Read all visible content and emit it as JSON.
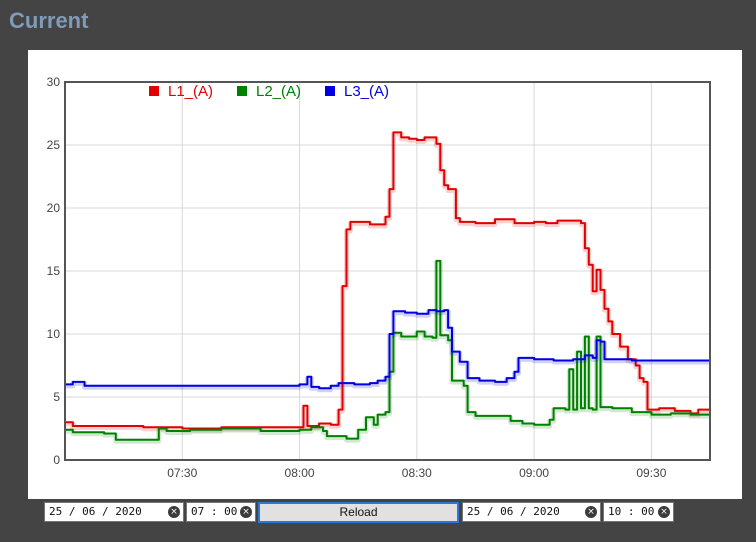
{
  "page": {
    "title": "Current"
  },
  "controls": {
    "start_date": "25 / 06 / 2020",
    "start_time": "07 : 00",
    "reload_label": "Reload",
    "end_date": "25 / 06 / 2020",
    "end_time": "10 : 00",
    "clear_glyph": "×"
  },
  "chart_data": {
    "type": "line",
    "title": "",
    "xlabel": "",
    "ylabel": "",
    "x_range": [
      "07:00",
      "09:45"
    ],
    "x_ticks": [
      "07:30",
      "08:00",
      "08:30",
      "09:00",
      "09:30"
    ],
    "y_range": [
      0,
      30
    ],
    "y_ticks": [
      0,
      5,
      10,
      15,
      20,
      25,
      30
    ],
    "grid": true,
    "legend_position": "top-left",
    "series": [
      {
        "name": "L1_(A)",
        "color": "#e00000",
        "points": [
          [
            "07:00",
            3.0
          ],
          [
            "07:02",
            2.7
          ],
          [
            "07:20",
            2.6
          ],
          [
            "07:30",
            2.5
          ],
          [
            "07:40",
            2.6
          ],
          [
            "07:50",
            2.6
          ],
          [
            "08:00",
            2.6
          ],
          [
            "08:01",
            4.3
          ],
          [
            "08:02",
            2.7
          ],
          [
            "08:05",
            2.9
          ],
          [
            "08:08",
            2.8
          ],
          [
            "08:10",
            4.0
          ],
          [
            "08:11",
            13.8
          ],
          [
            "08:12",
            18.3
          ],
          [
            "08:13",
            18.9
          ],
          [
            "08:18",
            18.7
          ],
          [
            "08:22",
            19.3
          ],
          [
            "08:23",
            21.5
          ],
          [
            "08:24",
            26.0
          ],
          [
            "08:26",
            25.6
          ],
          [
            "08:28",
            25.5
          ],
          [
            "08:30",
            25.4
          ],
          [
            "08:32",
            25.6
          ],
          [
            "08:34",
            25.6
          ],
          [
            "08:35",
            25.1
          ],
          [
            "08:36",
            23.0
          ],
          [
            "08:37",
            21.8
          ],
          [
            "08:38",
            21.5
          ],
          [
            "08:40",
            19.2
          ],
          [
            "08:41",
            18.9
          ],
          [
            "08:45",
            18.8
          ],
          [
            "08:50",
            19.1
          ],
          [
            "08:55",
            18.8
          ],
          [
            "09:00",
            18.9
          ],
          [
            "09:03",
            18.8
          ],
          [
            "09:06",
            19.0
          ],
          [
            "09:09",
            19.0
          ],
          [
            "09:12",
            18.8
          ],
          [
            "09:13",
            16.8
          ],
          [
            "09:14",
            15.5
          ],
          [
            "09:15",
            13.4
          ],
          [
            "09:16",
            15.1
          ],
          [
            "09:17",
            13.5
          ],
          [
            "09:18",
            12.0
          ],
          [
            "09:19",
            11.0
          ],
          [
            "09:20",
            10.0
          ],
          [
            "09:22",
            9.0
          ],
          [
            "09:24",
            8.0
          ],
          [
            "09:26",
            7.5
          ],
          [
            "09:27",
            6.5
          ],
          [
            "09:28",
            6.2
          ],
          [
            "09:29",
            4.0
          ],
          [
            "09:32",
            4.1
          ],
          [
            "09:36",
            3.9
          ],
          [
            "09:40",
            3.7
          ],
          [
            "09:42",
            4.0
          ],
          [
            "09:45",
            4.0
          ]
        ]
      },
      {
        "name": "L2_(A)",
        "color": "#008000",
        "points": [
          [
            "07:00",
            2.4
          ],
          [
            "07:02",
            2.2
          ],
          [
            "07:10",
            2.1
          ],
          [
            "07:13",
            1.6
          ],
          [
            "07:20",
            1.6
          ],
          [
            "07:24",
            2.5
          ],
          [
            "07:26",
            2.3
          ],
          [
            "07:32",
            2.4
          ],
          [
            "07:40",
            2.5
          ],
          [
            "07:50",
            2.3
          ],
          [
            "08:00",
            2.4
          ],
          [
            "08:03",
            2.6
          ],
          [
            "08:06",
            2.3
          ],
          [
            "08:07",
            1.9
          ],
          [
            "08:12",
            1.7
          ],
          [
            "08:15",
            2.4
          ],
          [
            "08:17",
            3.4
          ],
          [
            "08:19",
            2.8
          ],
          [
            "08:20",
            3.6
          ],
          [
            "08:22",
            3.8
          ],
          [
            "08:23",
            7.0
          ],
          [
            "08:24",
            10.1
          ],
          [
            "08:26",
            9.8
          ],
          [
            "08:28",
            9.8
          ],
          [
            "08:30",
            10.2
          ],
          [
            "08:32",
            9.8
          ],
          [
            "08:34",
            9.7
          ],
          [
            "08:35",
            15.8
          ],
          [
            "08:36",
            9.9
          ],
          [
            "08:38",
            9.5
          ],
          [
            "08:39",
            6.3
          ],
          [
            "08:42",
            5.9
          ],
          [
            "08:43",
            3.8
          ],
          [
            "08:45",
            3.5
          ],
          [
            "08:50",
            3.5
          ],
          [
            "08:54",
            3.1
          ],
          [
            "08:57",
            2.9
          ],
          [
            "09:00",
            2.8
          ],
          [
            "09:04",
            3.2
          ],
          [
            "09:05",
            4.1
          ],
          [
            "09:08",
            4.0
          ],
          [
            "09:09",
            7.2
          ],
          [
            "09:10",
            4.0
          ],
          [
            "09:11",
            8.6
          ],
          [
            "09:12",
            4.1
          ],
          [
            "09:13",
            9.8
          ],
          [
            "09:14",
            4.1
          ],
          [
            "09:15",
            4.0
          ],
          [
            "09:16",
            9.8
          ],
          [
            "09:17",
            4.2
          ],
          [
            "09:20",
            4.1
          ],
          [
            "09:25",
            3.8
          ],
          [
            "09:30",
            3.6
          ],
          [
            "09:35",
            3.7
          ],
          [
            "09:40",
            3.6
          ],
          [
            "09:45",
            3.6
          ]
        ]
      },
      {
        "name": "L3_(A)",
        "color": "#0000e0",
        "points": [
          [
            "07:00",
            6.0
          ],
          [
            "07:02",
            6.2
          ],
          [
            "07:05",
            5.9
          ],
          [
            "07:20",
            5.9
          ],
          [
            "07:40",
            5.9
          ],
          [
            "07:55",
            5.9
          ],
          [
            "08:00",
            6.0
          ],
          [
            "08:02",
            6.6
          ],
          [
            "08:03",
            5.8
          ],
          [
            "08:05",
            5.7
          ],
          [
            "08:08",
            5.9
          ],
          [
            "08:10",
            6.1
          ],
          [
            "08:14",
            6.0
          ],
          [
            "08:18",
            6.1
          ],
          [
            "08:20",
            6.3
          ],
          [
            "08:22",
            6.6
          ],
          [
            "08:23",
            10.0
          ],
          [
            "08:24",
            11.8
          ],
          [
            "08:27",
            11.7
          ],
          [
            "08:30",
            11.6
          ],
          [
            "08:33",
            11.9
          ],
          [
            "08:35",
            11.8
          ],
          [
            "08:37",
            11.9
          ],
          [
            "08:38",
            10.5
          ],
          [
            "08:39",
            8.6
          ],
          [
            "08:41",
            7.8
          ],
          [
            "08:43",
            6.5
          ],
          [
            "08:46",
            6.3
          ],
          [
            "08:50",
            6.2
          ],
          [
            "08:53",
            6.5
          ],
          [
            "08:55",
            7.0
          ],
          [
            "08:56",
            8.1
          ],
          [
            "09:00",
            8.0
          ],
          [
            "09:05",
            7.9
          ],
          [
            "09:10",
            8.0
          ],
          [
            "09:13",
            8.3
          ],
          [
            "09:15",
            8.1
          ],
          [
            "09:16",
            9.5
          ],
          [
            "09:17",
            9.4
          ],
          [
            "09:18",
            8.0
          ],
          [
            "09:22",
            8.0
          ],
          [
            "09:25",
            7.9
          ],
          [
            "09:30",
            7.9
          ],
          [
            "09:35",
            7.9
          ],
          [
            "09:40",
            7.9
          ],
          [
            "09:45",
            7.9
          ]
        ]
      }
    ]
  }
}
